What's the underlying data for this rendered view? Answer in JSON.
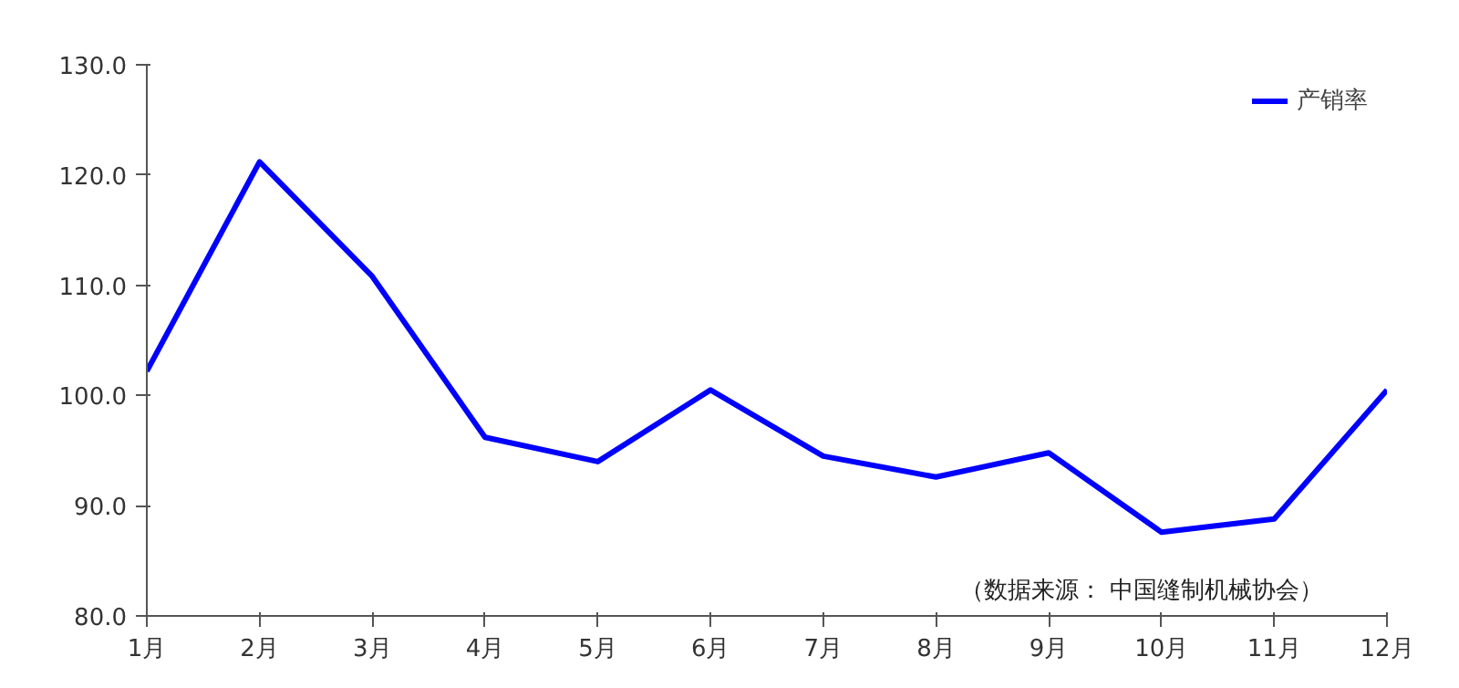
{
  "chart_data": {
    "type": "line",
    "categories": [
      "1月",
      "2月",
      "3月",
      "4月",
      "5月",
      "6月",
      "7月",
      "8月",
      "9月",
      "10月",
      "11月",
      "12月"
    ],
    "series": [
      {
        "name": "产销率",
        "color": "#0000ff",
        "values": [
          102.2,
          121.2,
          110.8,
          96.2,
          94.0,
          100.5,
          94.5,
          92.6,
          94.8,
          87.6,
          88.8,
          100.5
        ]
      }
    ],
    "ylim": [
      80,
      130
    ],
    "yticks": [
      {
        "value": 80,
        "label": "80.0"
      },
      {
        "value": 90,
        "label": "90.0"
      },
      {
        "value": 100,
        "label": "100.0"
      },
      {
        "value": 110,
        "label": "110.0"
      },
      {
        "value": 120,
        "label": "120.0"
      },
      {
        "value": 130,
        "label": "130.0"
      }
    ],
    "grid": false,
    "legend": "top right",
    "marker": "none",
    "line_style": "solid",
    "annotations": [
      "（数据来源：  中国缝制机械协会）"
    ]
  }
}
